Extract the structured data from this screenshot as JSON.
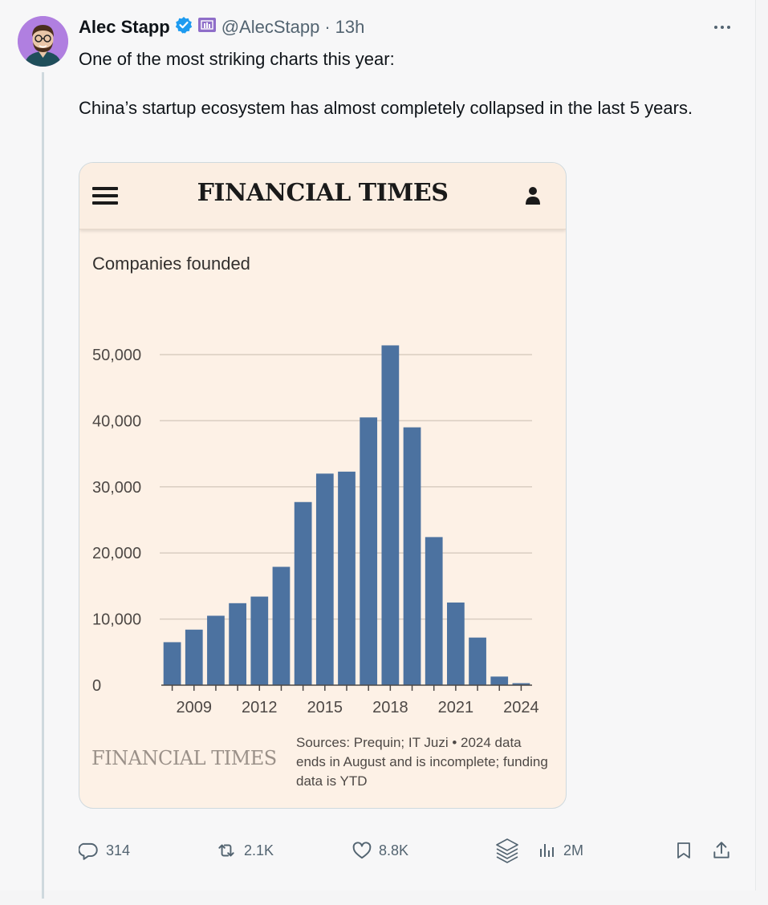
{
  "tweet": {
    "author_name": "Alec Stapp",
    "handle": "@AlecStapp",
    "separator": "·",
    "time": "13h",
    "text_line1": "One of the most striking charts this year:",
    "text_line2": "China’s startup ecosystem has almost completely collapsed in the last 5 years.",
    "verified_color": "#1d9bf0",
    "affiliate_color": "#8f6ec9"
  },
  "card": {
    "masthead": "FINANCIAL TIMES",
    "footer_logo": "FINANCIAL TIMES",
    "sources": "Sources: Prequin; IT Juzi • 2024 data ends in August and is incomplete; funding data is YTD"
  },
  "chart_data": {
    "type": "bar",
    "title": "Companies founded",
    "x": [
      2008,
      2009,
      2010,
      2011,
      2012,
      2013,
      2014,
      2015,
      2016,
      2017,
      2018,
      2019,
      2020,
      2021,
      2022,
      2023,
      2024
    ],
    "values": [
      6500,
      8400,
      10500,
      12400,
      13400,
      17900,
      27700,
      32000,
      32300,
      40500,
      51400,
      39000,
      22400,
      12500,
      7200,
      1300,
      300
    ],
    "x_tick_labels": [
      "2009",
      "2012",
      "2015",
      "2018",
      "2021",
      "2024"
    ],
    "x_tick_values": [
      2009,
      2012,
      2015,
      2018,
      2021,
      2024
    ],
    "y_ticks": [
      0,
      10000,
      20000,
      30000,
      40000,
      50000
    ],
    "y_tick_labels": [
      "0",
      "10,000",
      "20,000",
      "30,000",
      "40,000",
      "50,000"
    ],
    "ylim": [
      0,
      50000
    ],
    "bar_color": "#4c72a0",
    "grid": true
  },
  "actions": {
    "replies": "314",
    "reposts": "2.1K",
    "likes": "8.8K",
    "views": "2M"
  }
}
